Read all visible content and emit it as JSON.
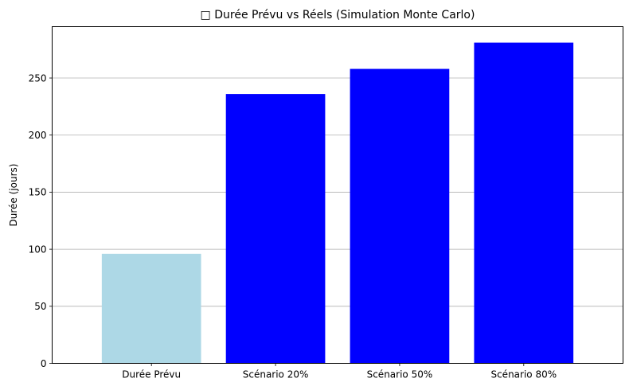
{
  "chart_data": {
    "type": "bar",
    "title": "□ Durée Prévu vs Réels (Simulation Monte Carlo)",
    "xlabel": "",
    "ylabel": "Durée (jours)",
    "categories": [
      "Durée Prévu",
      "Scénario 20%",
      "Scénario 50%",
      "Scénario 80%"
    ],
    "values": [
      96,
      236,
      258,
      281
    ],
    "bar_colors": [
      "#add8e6",
      "#0000ff",
      "#0000ff",
      "#0000ff"
    ],
    "ylim": [
      0,
      295
    ],
    "yticks": [
      0,
      50,
      100,
      150,
      200,
      250
    ],
    "grid": "y-axis major gridlines",
    "legend": "none"
  }
}
